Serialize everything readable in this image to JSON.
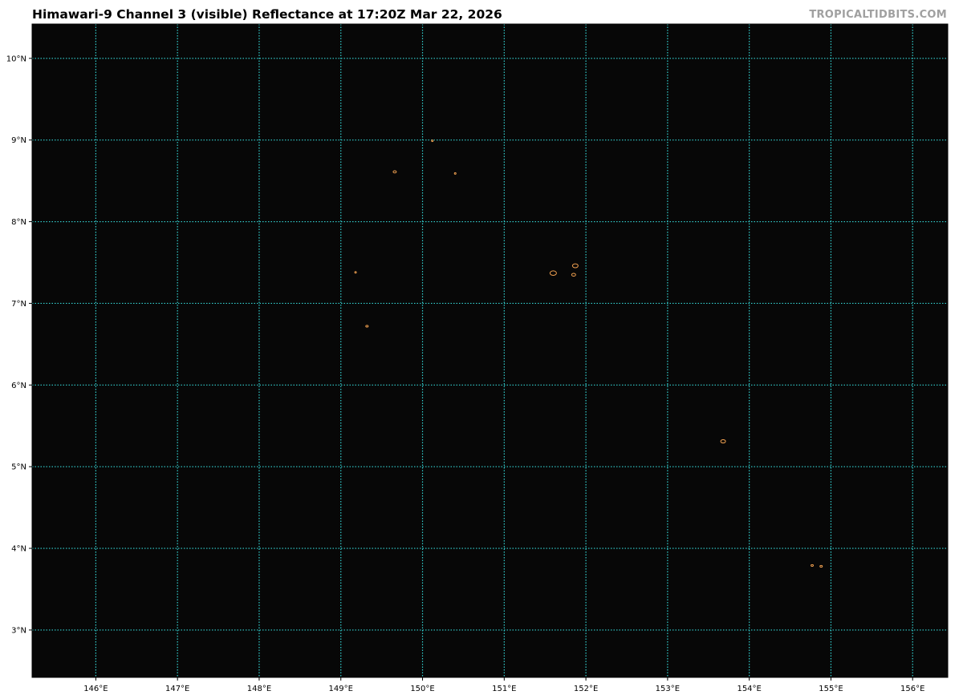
{
  "title": "Himawari-9 Channel 3 (visible) Reflectance at 17:20Z Mar 22, 2026",
  "credit": "TROPICALTIDBITS.COM",
  "map": {
    "extent": {
      "lon": [
        145.22,
        156.43
      ],
      "lat": [
        2.42,
        10.42
      ]
    },
    "background_color": "#070707",
    "grid_color": "#33d0d0",
    "coastline_color": "#f0a050",
    "lon_ticks": [
      {
        "value": 146,
        "label": "146°E"
      },
      {
        "value": 147,
        "label": "147°E"
      },
      {
        "value": 148,
        "label": "148°E"
      },
      {
        "value": 149,
        "label": "149°E"
      },
      {
        "value": 150,
        "label": "150°E"
      },
      {
        "value": 151,
        "label": "151°E"
      },
      {
        "value": 152,
        "label": "152°E"
      },
      {
        "value": 153,
        "label": "153°E"
      },
      {
        "value": 154,
        "label": "154°E"
      },
      {
        "value": 155,
        "label": "155°E"
      },
      {
        "value": 156,
        "label": "156°E"
      }
    ],
    "lat_ticks": [
      {
        "value": 10,
        "label": "10°N"
      },
      {
        "value": 9,
        "label": "9°N"
      },
      {
        "value": 8,
        "label": "8°N"
      },
      {
        "value": 7,
        "label": "7°N"
      },
      {
        "value": 6,
        "label": "6°N"
      },
      {
        "value": 5,
        "label": "5°N"
      },
      {
        "value": 4,
        "label": "4°N"
      },
      {
        "value": 3,
        "label": "3°N"
      }
    ],
    "islands": [
      {
        "lon": 149.66,
        "lat": 8.61,
        "size": 2
      },
      {
        "lon": 150.12,
        "lat": 8.99,
        "size": 1
      },
      {
        "lon": 150.4,
        "lat": 8.59,
        "size": 1
      },
      {
        "lon": 149.18,
        "lat": 7.38,
        "size": 1
      },
      {
        "lon": 149.32,
        "lat": 6.72,
        "size": 1.5
      },
      {
        "lon": 151.6,
        "lat": 7.37,
        "size": 4
      },
      {
        "lon": 151.87,
        "lat": 7.46,
        "size": 3.5
      },
      {
        "lon": 151.85,
        "lat": 7.35,
        "size": 2.5
      },
      {
        "lon": 153.68,
        "lat": 5.31,
        "size": 3
      },
      {
        "lon": 154.77,
        "lat": 3.79,
        "size": 1.5
      },
      {
        "lon": 154.88,
        "lat": 3.78,
        "size": 1.5
      }
    ]
  }
}
